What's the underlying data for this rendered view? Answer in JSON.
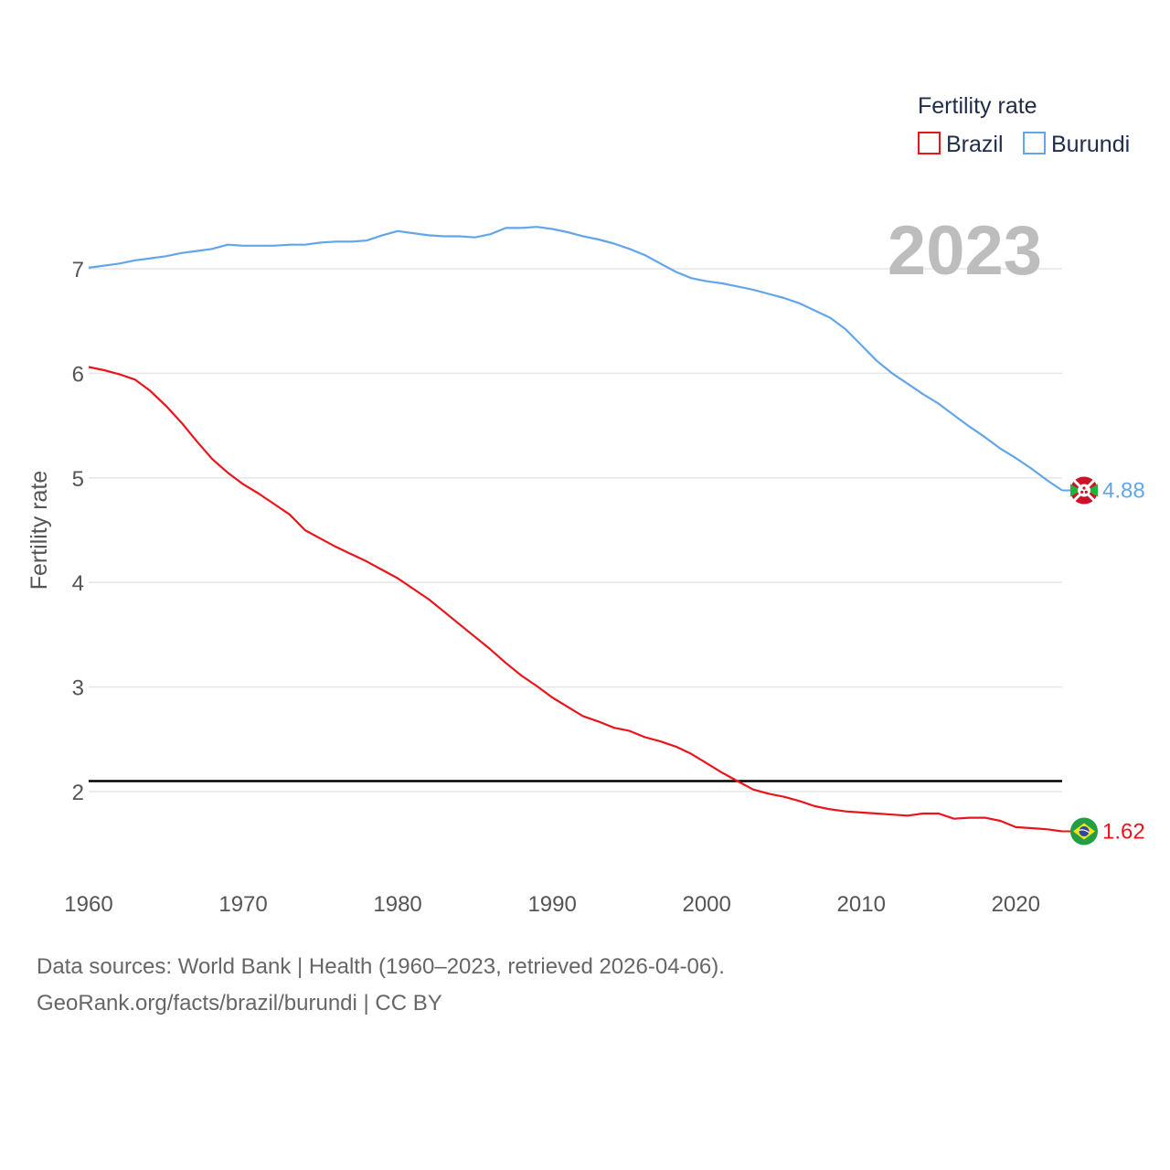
{
  "chart_data": {
    "type": "line",
    "legend_title": "Fertility rate",
    "ylabel": "Fertility rate",
    "xlabel": "",
    "year_label": "2023",
    "xlim": [
      1960,
      2023
    ],
    "ylim": [
      1.0,
      8.0
    ],
    "x_ticks": [
      1960,
      1970,
      1980,
      1990,
      2000,
      2010,
      2020
    ],
    "y_ticks": [
      2,
      3,
      4,
      5,
      6,
      7
    ],
    "reference_line": {
      "value": 2.1,
      "color": "#000000"
    },
    "years": [
      1960,
      1961,
      1962,
      1963,
      1964,
      1965,
      1966,
      1967,
      1968,
      1969,
      1970,
      1971,
      1972,
      1973,
      1974,
      1975,
      1976,
      1977,
      1978,
      1979,
      1980,
      1981,
      1982,
      1983,
      1984,
      1985,
      1986,
      1987,
      1988,
      1989,
      1990,
      1991,
      1992,
      1993,
      1994,
      1995,
      1996,
      1997,
      1998,
      1999,
      2000,
      2001,
      2002,
      2003,
      2004,
      2005,
      2006,
      2007,
      2008,
      2009,
      2010,
      2011,
      2012,
      2013,
      2014,
      2015,
      2016,
      2017,
      2018,
      2019,
      2020,
      2021,
      2022,
      2023
    ],
    "series": [
      {
        "name": "Brazil",
        "color": "#e8161b",
        "end_label": "1.62",
        "flag": "brazil-flag-icon",
        "values": [
          6.06,
          6.03,
          5.99,
          5.94,
          5.83,
          5.69,
          5.53,
          5.35,
          5.18,
          5.05,
          4.94,
          4.85,
          4.75,
          4.65,
          4.5,
          4.42,
          4.34,
          4.27,
          4.2,
          4.12,
          4.04,
          3.94,
          3.84,
          3.72,
          3.6,
          3.48,
          3.36,
          3.23,
          3.11,
          3.01,
          2.9,
          2.81,
          2.72,
          2.67,
          2.61,
          2.58,
          2.52,
          2.48,
          2.43,
          2.36,
          2.27,
          2.18,
          2.1,
          2.02,
          1.98,
          1.95,
          1.91,
          1.86,
          1.83,
          1.81,
          1.8,
          1.79,
          1.78,
          1.77,
          1.79,
          1.79,
          1.74,
          1.75,
          1.75,
          1.72,
          1.66,
          1.65,
          1.64,
          1.62
        ]
      },
      {
        "name": "Burundi",
        "color": "#62a6e9",
        "end_label": "4.88",
        "flag": "burundi-flag-icon",
        "values": [
          7.01,
          7.03,
          7.05,
          7.08,
          7.1,
          7.12,
          7.15,
          7.17,
          7.19,
          7.23,
          7.22,
          7.22,
          7.22,
          7.23,
          7.23,
          7.25,
          7.26,
          7.26,
          7.27,
          7.32,
          7.36,
          7.34,
          7.32,
          7.31,
          7.31,
          7.3,
          7.33,
          7.39,
          7.39,
          7.4,
          7.38,
          7.35,
          7.31,
          7.28,
          7.24,
          7.19,
          7.13,
          7.05,
          6.97,
          6.91,
          6.88,
          6.86,
          6.83,
          6.8,
          6.76,
          6.72,
          6.67,
          6.6,
          6.53,
          6.42,
          6.27,
          6.12,
          6.0,
          5.9,
          5.8,
          5.71,
          5.6,
          5.49,
          5.39,
          5.28,
          5.19,
          5.09,
          4.98,
          4.88
        ]
      }
    ]
  },
  "footer": {
    "sources": "Data sources: World Bank | Health (1960–2023, retrieved 2026-04-06).",
    "url": "GeoRank.org/facts/brazil/burundi | CC BY"
  }
}
